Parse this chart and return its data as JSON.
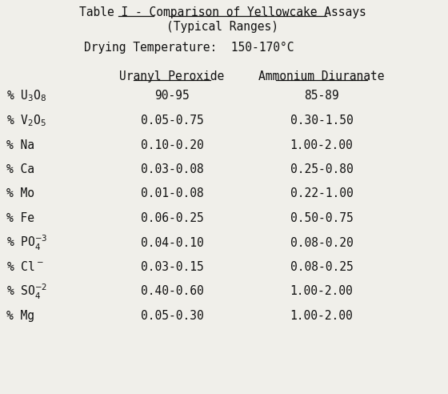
{
  "title_part1": "Table I - ",
  "title_part2": "Comparison of Yellowcake Assays",
  "title_line2": "(Typical Ranges)",
  "subtitle": "Drying Temperature:  150-170°C",
  "col1_header": "Uranyl Peroxide",
  "col2_header": "Ammonium Diuranate",
  "rows": [
    {
      "col1": "90-95",
      "col2": "85-89"
    },
    {
      "col1": "0.05-0.75",
      "col2": "0.30-1.50"
    },
    {
      "col1": "0.10-0.20",
      "col2": "1.00-2.00"
    },
    {
      "col1": "0.03-0.08",
      "col2": "0.25-0.80"
    },
    {
      "col1": "0.01-0.08",
      "col2": "0.22-1.00"
    },
    {
      "col1": "0.06-0.25",
      "col2": "0.50-0.75"
    },
    {
      "col1": "0.04-0.10",
      "col2": "0.08-0.20"
    },
    {
      "col1": "0.03-0.15",
      "col2": "0.08-0.25"
    },
    {
      "col1": "0.40-0.60",
      "col2": "1.00-2.00"
    },
    {
      "col1": "0.05-0.30",
      "col2": "1.00-2.00"
    }
  ],
  "label_texts": [
    "% U$_3$O$_8$",
    "% V$_2$O$_5$",
    "% Na",
    "% Ca",
    "% Mo",
    "% Fe",
    "% PO$_4^{-3}$",
    "% Cl$^-$",
    "% SO$_4^{-2}$",
    "% Mg"
  ],
  "bg_color": "#f0efea",
  "font_color": "#111111",
  "font_size": 10.5,
  "fig_w": 5.6,
  "fig_h": 4.92,
  "dpi": 100
}
